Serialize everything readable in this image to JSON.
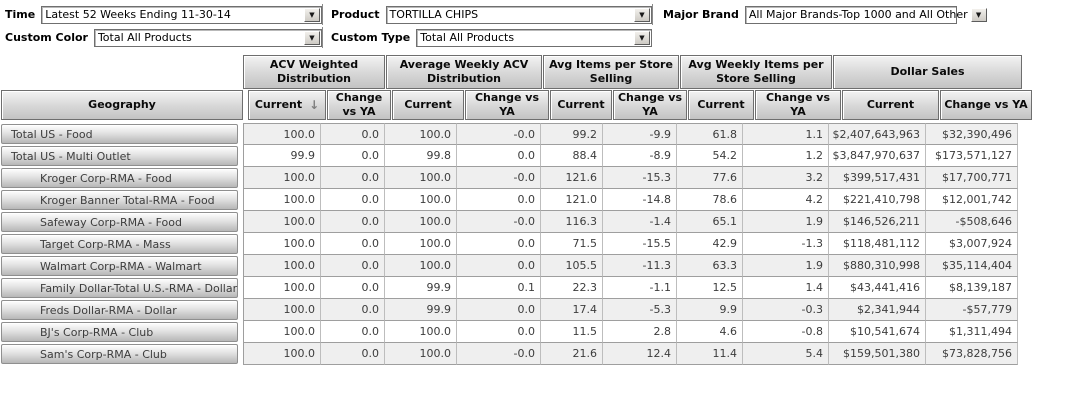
{
  "filters": {
    "time": {
      "label": "Time",
      "value": "Latest 52 Weeks Ending 11-30-14"
    },
    "product": {
      "label": "Product",
      "value": "TORTILLA CHIPS"
    },
    "major_brand": {
      "label": "Major Brand",
      "value": "All Major Brands-Top 1000 and All Other"
    },
    "custom_color": {
      "label": "Custom Color",
      "value": "Total All Products"
    },
    "custom_type": {
      "label": "Custom Type",
      "value": "Total All Products"
    },
    "dropdown_arrow": "▼"
  },
  "table": {
    "geography_header": "Geography",
    "groups": [
      {
        "label": "ACV Weighted Distribution"
      },
      {
        "label": "Average Weekly ACV Distribution"
      },
      {
        "label": "Avg Items per Store Selling"
      },
      {
        "label": "Avg Weekly Items per Store Selling"
      },
      {
        "label": "Dollar Sales"
      }
    ],
    "subheaders": [
      "Current",
      "Change vs YA",
      "Current",
      "Change vs YA",
      "Current",
      "Change vs YA",
      "Current",
      "Change vs YA",
      "Current",
      "Change vs YA"
    ],
    "sort": {
      "column": "ACV Weighted Distribution / Current",
      "direction": "descending",
      "glyph": "↓"
    },
    "rows": [
      {
        "geo": "Total US - Food",
        "indent": 0,
        "values": [
          "100.0",
          "0.0",
          "100.0",
          "-0.0",
          "99.2",
          "-9.9",
          "61.8",
          "1.1",
          "$2,407,643,963",
          "$32,390,496"
        ]
      },
      {
        "geo": "Total US - Multi Outlet",
        "indent": 0,
        "values": [
          "99.9",
          "0.0",
          "99.8",
          "0.0",
          "88.4",
          "-8.9",
          "54.2",
          "1.2",
          "$3,847,970,637",
          "$173,571,127"
        ]
      },
      {
        "geo": "Kroger Corp-RMA - Food",
        "indent": 1,
        "values": [
          "100.0",
          "0.0",
          "100.0",
          "-0.0",
          "121.6",
          "-15.3",
          "77.6",
          "3.2",
          "$399,517,431",
          "$17,700,771"
        ]
      },
      {
        "geo": "Kroger Banner Total-RMA - Food",
        "indent": 1,
        "values": [
          "100.0",
          "0.0",
          "100.0",
          "0.0",
          "121.0",
          "-14.8",
          "78.6",
          "4.2",
          "$221,410,798",
          "$12,001,742"
        ]
      },
      {
        "geo": "Safeway Corp-RMA - Food",
        "indent": 1,
        "values": [
          "100.0",
          "0.0",
          "100.0",
          "-0.0",
          "116.3",
          "-1.4",
          "65.1",
          "1.9",
          "$146,526,211",
          "-$508,646"
        ]
      },
      {
        "geo": "Target Corp-RMA - Mass",
        "indent": 1,
        "values": [
          "100.0",
          "0.0",
          "100.0",
          "0.0",
          "71.5",
          "-15.5",
          "42.9",
          "-1.3",
          "$118,481,112",
          "$3,007,924"
        ]
      },
      {
        "geo": "Walmart Corp-RMA - Walmart",
        "indent": 1,
        "values": [
          "100.0",
          "0.0",
          "100.0",
          "0.0",
          "105.5",
          "-11.3",
          "63.3",
          "1.9",
          "$880,310,998",
          "$35,114,404"
        ]
      },
      {
        "geo": "Family Dollar-Total U.S.-RMA - Dollar",
        "indent": 1,
        "values": [
          "100.0",
          "0.0",
          "99.9",
          "0.1",
          "22.3",
          "-1.1",
          "12.5",
          "1.4",
          "$43,441,416",
          "$8,139,187"
        ]
      },
      {
        "geo": "Freds Dollar-RMA - Dollar",
        "indent": 1,
        "values": [
          "100.0",
          "0.0",
          "99.9",
          "0.0",
          "17.4",
          "-5.3",
          "9.9",
          "-0.3",
          "$2,341,944",
          "-$57,779"
        ]
      },
      {
        "geo": "BJ's Corp-RMA - Club",
        "indent": 1,
        "values": [
          "100.0",
          "0.0",
          "100.0",
          "0.0",
          "11.5",
          "2.8",
          "4.6",
          "-0.8",
          "$10,541,674",
          "$1,311,494"
        ]
      },
      {
        "geo": "Sam's Corp-RMA - Club",
        "indent": 1,
        "values": [
          "100.0",
          "0.0",
          "100.0",
          "-0.0",
          "21.6",
          "12.4",
          "11.4",
          "5.4",
          "$159,501,380",
          "$73,828,756"
        ]
      }
    ]
  }
}
